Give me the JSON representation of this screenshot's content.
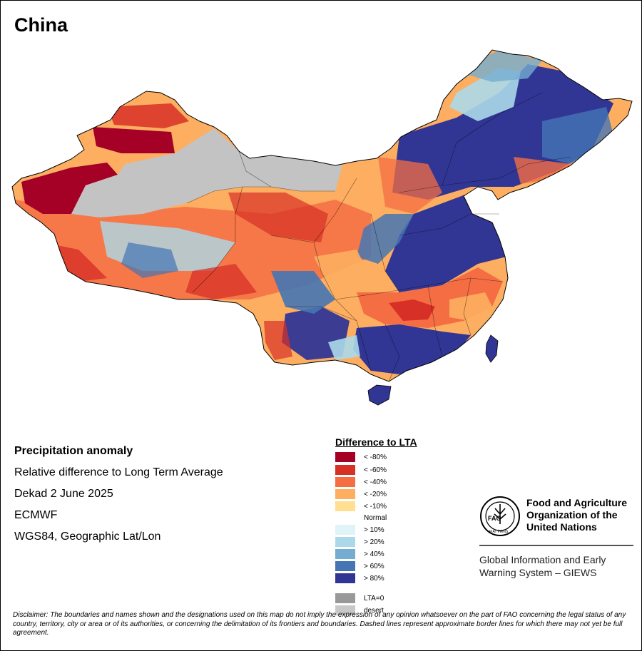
{
  "map": {
    "title": "China",
    "region_colors": {
      "desert": "#c3c3c3",
      "very_dry": "#a50026",
      "dry": "#d73027",
      "moderately_dry": "#f46d43",
      "slightly_dry": "#fdae61",
      "near_normal": "#fee090",
      "wet": "#4575b4",
      "very_wet": "#313695",
      "island_wet": "#27308f",
      "boundary": "#000000"
    }
  },
  "info": {
    "heading": "Precipitation anomaly",
    "line1": "Relative difference to Long Term Average",
    "line2": "Dekad 2 June 2025",
    "line3": "ECMWF",
    "line4": "WGS84, Geographic Lat/Lon"
  },
  "legend": {
    "title": "Difference to LTA",
    "items": [
      {
        "label": "< -80%",
        "color": "#a50026"
      },
      {
        "label": "< -60%",
        "color": "#d73027"
      },
      {
        "label": "< -40%",
        "color": "#f46d43"
      },
      {
        "label": "< -20%",
        "color": "#fdae61"
      },
      {
        "label": "< -10%",
        "color": "#fee090"
      },
      {
        "label": "Normal",
        "color": "#ffffff"
      },
      {
        "label": "> 10%",
        "color": "#e0f3f8"
      },
      {
        "label": "> 20%",
        "color": "#abd9e9"
      },
      {
        "label": "> 40%",
        "color": "#74add1"
      },
      {
        "label": "> 60%",
        "color": "#4575b4"
      },
      {
        "label": "> 80%",
        "color": "#313695"
      },
      {
        "label": "LTA=0",
        "color": "#999999"
      },
      {
        "label": "desert",
        "color": "#c8c8c8"
      }
    ]
  },
  "fao": {
    "logo_text": "FAO",
    "logo_motto": "FIAT PANIS",
    "name_line1": "Food and Agriculture",
    "name_line2": "Organization of the",
    "name_line3": "United Nations",
    "giews_line1": "Global Information and Early",
    "giews_line2": "Warning System – GIEWS"
  },
  "disclaimer": "Disclaimer: The boundaries and names shown and the designations used on this map do not imply the expression of any opinion whatsoever on the part of FAO concerning the legal status of any country, territory, city or area or of its authorities, or concerning the delimitation of its frontiers and boundaries. Dashed lines represent approximate border lines for which there may not yet be full agreement."
}
